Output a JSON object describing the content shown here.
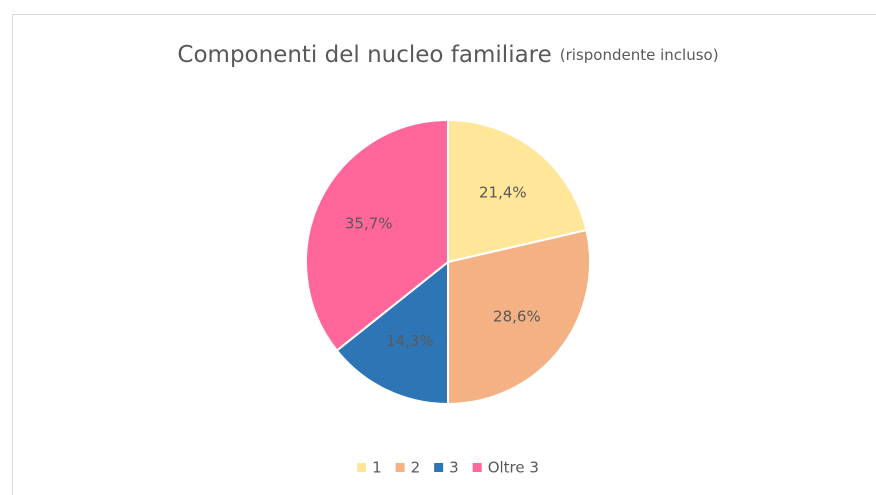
{
  "chart_data": {
    "type": "pie",
    "title": "Componenti del nucleo familiare",
    "subtitle": "(rispondente incluso)",
    "categories": [
      "1",
      "2",
      "3",
      "Oltre 3"
    ],
    "values": [
      21.4,
      28.6,
      14.3,
      35.7
    ],
    "value_labels": [
      "21,4%",
      "28,6%",
      "14,3%",
      "35,7%"
    ],
    "colors": [
      "#FFE699",
      "#F4B183",
      "#2E75B6",
      "#FF6699"
    ],
    "legend": "bottom"
  }
}
